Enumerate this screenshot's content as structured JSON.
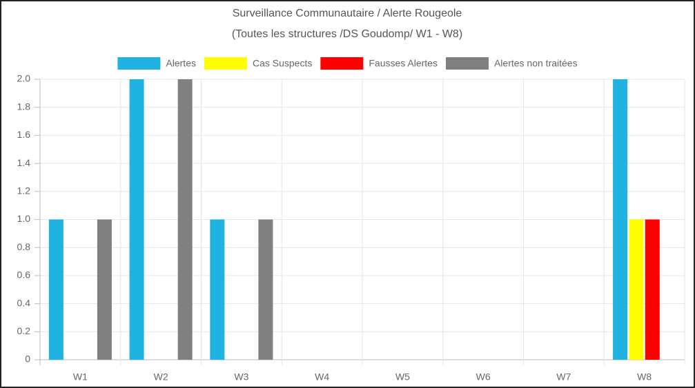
{
  "chart_data": {
    "type": "bar",
    "title": "Surveillance Communautaire / Alerte Rougeole",
    "subtitle": "(Toutes les structures /DS Goudomp/ W1 - W8)",
    "categories": [
      "W1",
      "W2",
      "W3",
      "W4",
      "W5",
      "W6",
      "W7",
      "W8"
    ],
    "series": [
      {
        "name": "Alertes",
        "color": "#20b2e0",
        "values": [
          1,
          2,
          1,
          0,
          0,
          0,
          0,
          2
        ]
      },
      {
        "name": "Cas Suspects",
        "color": "#ffff00",
        "values": [
          0,
          0,
          0,
          0,
          0,
          0,
          0,
          1
        ]
      },
      {
        "name": "Fausses Alertes",
        "color": "#ff0000",
        "values": [
          0,
          0,
          0,
          0,
          0,
          0,
          0,
          1
        ]
      },
      {
        "name": "Alertes non traitées",
        "color": "#808080",
        "values": [
          1,
          2,
          1,
          0,
          0,
          0,
          0,
          0
        ]
      }
    ],
    "ylim": [
      0,
      2
    ],
    "yticks": [
      0,
      0.2,
      0.4,
      0.6,
      0.8,
      {
        "value": 1,
        "label": "1.0"
      },
      1.2,
      1.4,
      1.6,
      1.8,
      {
        "value": 2,
        "label": "2.0"
      }
    ],
    "grid": true,
    "legend": "top"
  }
}
